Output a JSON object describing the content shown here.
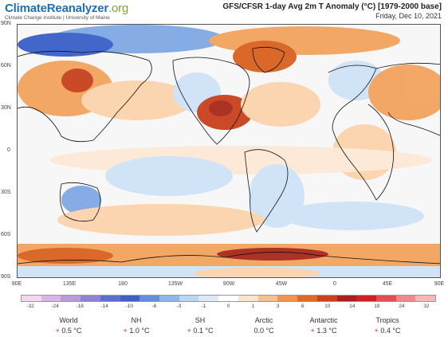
{
  "brand": {
    "part1": "Climate",
    "part2": "Reanalyzer",
    "part3": ".org",
    "org": "Climate Change Institute | University of Maine"
  },
  "title": "GFS/CFSR 1-day Avg 2m T Anomaly (°C) [1979-2000 base]",
  "date": "Friday, Dec 10, 2021",
  "lat_labels": [
    "90N",
    "60N",
    "30N",
    "0",
    "30S",
    "60S",
    "90S"
  ],
  "lon_labels": [
    "90E",
    "135E",
    "180",
    "135W",
    "90W",
    "45W",
    "0",
    "45E",
    "90E"
  ],
  "colorbar": {
    "ticks": [
      "-32",
      "-24",
      "-18",
      "-14",
      "-10",
      "-6",
      "-3",
      "-1",
      "0",
      "1",
      "3",
      "6",
      "10",
      "14",
      "18",
      "24",
      "32"
    ],
    "colors": [
      "#f4d6f3",
      "#d8b4e8",
      "#b99ade",
      "#8f83d8",
      "#5a6fd0",
      "#3e5fc5",
      "#5e90db",
      "#8bb7eb",
      "#b8d5f4",
      "#dbe9f8",
      "#ffffff",
      "#fbe3cc",
      "#f6c08e",
      "#ef9451",
      "#e06a25",
      "#c8401c",
      "#a8201a",
      "#cc2222",
      "#e05050",
      "#f08a8a",
      "#f6b8b8"
    ]
  },
  "map_colors": {
    "ocean": "#f7f7f7",
    "light_blue": "#cfe2f6",
    "blue": "#7fa9e4",
    "dark_blue": "#3a5fc9",
    "light_orange": "#fbd4ad",
    "orange": "#f2a35e",
    "dark_orange": "#d9611f",
    "red": "#a8281a",
    "coast": "#111111"
  },
  "stats": [
    {
      "name": "World",
      "sign": "+",
      "value": "0.5 °C"
    },
    {
      "name": "NH",
      "sign": "+",
      "value": "1.0 °C"
    },
    {
      "name": "SH",
      "sign": "+",
      "value": "0.1 °C"
    },
    {
      "name": "Arctic",
      "sign": "",
      "value": "0.0 °C"
    },
    {
      "name": "Antarctic",
      "sign": "+",
      "value": "1.3 °C"
    },
    {
      "name": "Tropics",
      "sign": "+",
      "value": "0.4 °C"
    }
  ]
}
